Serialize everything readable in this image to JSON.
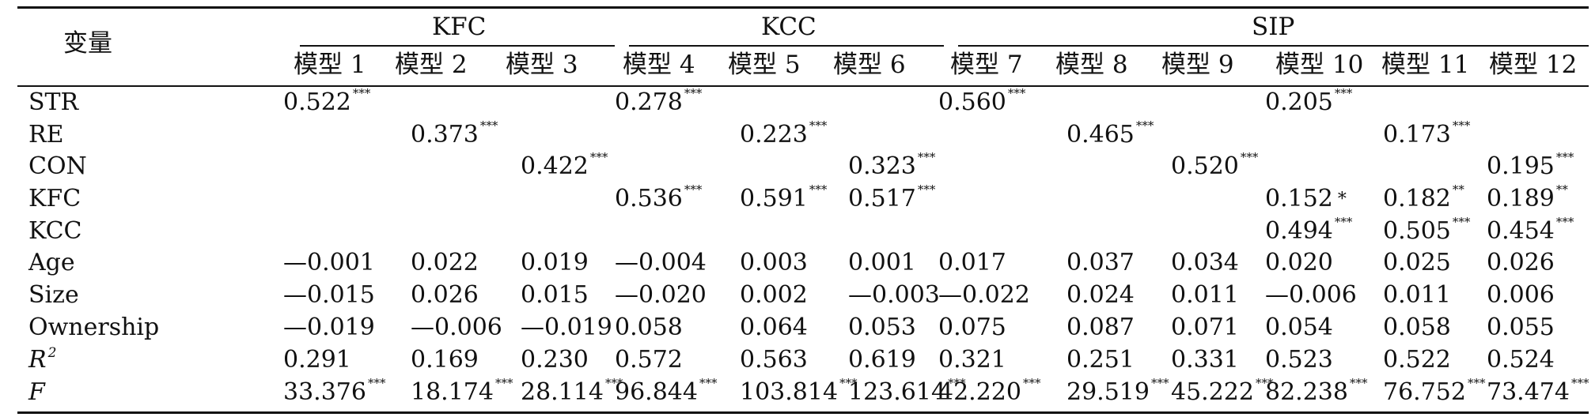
{
  "table": {
    "corner_label": "变量",
    "groups": [
      {
        "label": "KFC"
      },
      {
        "label": "KCC"
      },
      {
        "label": "SIP"
      }
    ],
    "models": [
      "模型 1",
      "模型 2",
      "模型 3",
      "模型 4",
      "模型 5",
      "模型 6",
      "模型 7",
      "模型 8",
      "模型 9",
      "模型 10",
      "模型 11",
      "模型 12"
    ],
    "rows": [
      {
        "label": "STR",
        "cells": [
          {
            "v": "0.522",
            "s": "***"
          },
          {
            "v": "",
            "s": ""
          },
          {
            "v": "",
            "s": ""
          },
          {
            "v": "0.278",
            "s": "***"
          },
          {
            "v": "",
            "s": ""
          },
          {
            "v": "",
            "s": ""
          },
          {
            "v": "0.560",
            "s": "***"
          },
          {
            "v": "",
            "s": ""
          },
          {
            "v": "",
            "s": ""
          },
          {
            "v": "0.205",
            "s": "***"
          },
          {
            "v": "",
            "s": ""
          },
          {
            "v": "",
            "s": ""
          }
        ]
      },
      {
        "label": "RE",
        "cells": [
          {
            "v": "",
            "s": ""
          },
          {
            "v": "0.373",
            "s": "***"
          },
          {
            "v": "",
            "s": ""
          },
          {
            "v": "",
            "s": ""
          },
          {
            "v": "0.223",
            "s": "***"
          },
          {
            "v": "",
            "s": ""
          },
          {
            "v": "",
            "s": ""
          },
          {
            "v": "0.465",
            "s": "***"
          },
          {
            "v": "",
            "s": ""
          },
          {
            "v": "",
            "s": ""
          },
          {
            "v": "0.173",
            "s": "***"
          },
          {
            "v": "",
            "s": ""
          }
        ]
      },
      {
        "label": "CON",
        "cells": [
          {
            "v": "",
            "s": ""
          },
          {
            "v": "",
            "s": ""
          },
          {
            "v": "0.422",
            "s": "***"
          },
          {
            "v": "",
            "s": ""
          },
          {
            "v": "",
            "s": ""
          },
          {
            "v": "0.323",
            "s": "***"
          },
          {
            "v": "",
            "s": ""
          },
          {
            "v": "",
            "s": ""
          },
          {
            "v": "0.520",
            "s": "***"
          },
          {
            "v": "",
            "s": ""
          },
          {
            "v": "",
            "s": ""
          },
          {
            "v": "0.195",
            "s": "***"
          }
        ]
      },
      {
        "label": "KFC",
        "cells": [
          {
            "v": "",
            "s": ""
          },
          {
            "v": "",
            "s": ""
          },
          {
            "v": "",
            "s": ""
          },
          {
            "v": "0.536",
            "s": "***"
          },
          {
            "v": "0.591",
            "s": "***"
          },
          {
            "v": "0.517",
            "s": "***"
          },
          {
            "v": "",
            "s": ""
          },
          {
            "v": "",
            "s": ""
          },
          {
            "v": "",
            "s": ""
          },
          {
            "v": "0.152",
            "s": "*"
          },
          {
            "v": "0.182",
            "s": "**"
          },
          {
            "v": "0.189",
            "s": "**"
          }
        ]
      },
      {
        "label": "KCC",
        "cells": [
          {
            "v": "",
            "s": ""
          },
          {
            "v": "",
            "s": ""
          },
          {
            "v": "",
            "s": ""
          },
          {
            "v": "",
            "s": ""
          },
          {
            "v": "",
            "s": ""
          },
          {
            "v": "",
            "s": ""
          },
          {
            "v": "",
            "s": ""
          },
          {
            "v": "",
            "s": ""
          },
          {
            "v": "",
            "s": ""
          },
          {
            "v": "0.494",
            "s": "***"
          },
          {
            "v": "0.505",
            "s": "***"
          },
          {
            "v": "0.454",
            "s": "***"
          }
        ]
      },
      {
        "label": "Age",
        "cells": [
          {
            "v": "—0.001",
            "s": ""
          },
          {
            "v": "0.022",
            "s": ""
          },
          {
            "v": "0.019",
            "s": ""
          },
          {
            "v": "—0.004",
            "s": ""
          },
          {
            "v": "0.003",
            "s": ""
          },
          {
            "v": "0.001",
            "s": ""
          },
          {
            "v": "0.017",
            "s": ""
          },
          {
            "v": "0.037",
            "s": ""
          },
          {
            "v": "0.034",
            "s": ""
          },
          {
            "v": "0.020",
            "s": ""
          },
          {
            "v": "0.025",
            "s": ""
          },
          {
            "v": "0.026",
            "s": ""
          }
        ]
      },
      {
        "label": "Size",
        "cells": [
          {
            "v": "—0.015",
            "s": ""
          },
          {
            "v": "0.026",
            "s": ""
          },
          {
            "v": "0.015",
            "s": ""
          },
          {
            "v": "—0.020",
            "s": ""
          },
          {
            "v": "0.002",
            "s": ""
          },
          {
            "v": "—0.003",
            "s": ""
          },
          {
            "v": "—0.022",
            "s": ""
          },
          {
            "v": "0.024",
            "s": ""
          },
          {
            "v": "0.011",
            "s": ""
          },
          {
            "v": "—0.006",
            "s": ""
          },
          {
            "v": "0.011",
            "s": ""
          },
          {
            "v": "0.006",
            "s": ""
          }
        ]
      },
      {
        "label": "Ownership",
        "cells": [
          {
            "v": "—0.019",
            "s": ""
          },
          {
            "v": "—0.006",
            "s": ""
          },
          {
            "v": "—0.019",
            "s": ""
          },
          {
            "v": "0.058",
            "s": ""
          },
          {
            "v": "0.064",
            "s": ""
          },
          {
            "v": "0.053",
            "s": ""
          },
          {
            "v": "0.075",
            "s": ""
          },
          {
            "v": "0.087",
            "s": ""
          },
          {
            "v": "0.071",
            "s": ""
          },
          {
            "v": "0.054",
            "s": ""
          },
          {
            "v": "0.058",
            "s": ""
          },
          {
            "v": "0.055",
            "s": ""
          }
        ]
      },
      {
        "label": "R",
        "label_sup": "2",
        "cells": [
          {
            "v": "0.291",
            "s": ""
          },
          {
            "v": "0.169",
            "s": ""
          },
          {
            "v": "0.230",
            "s": ""
          },
          {
            "v": "0.572",
            "s": ""
          },
          {
            "v": "0.563",
            "s": ""
          },
          {
            "v": "0.619",
            "s": ""
          },
          {
            "v": "0.321",
            "s": ""
          },
          {
            "v": "0.251",
            "s": ""
          },
          {
            "v": "0.331",
            "s": ""
          },
          {
            "v": "0.523",
            "s": ""
          },
          {
            "v": "0.522",
            "s": ""
          },
          {
            "v": "0.524",
            "s": ""
          }
        ]
      },
      {
        "label": "F",
        "cells": [
          {
            "v": "33.376",
            "s": "***"
          },
          {
            "v": "18.174",
            "s": "***"
          },
          {
            "v": "28.114",
            "s": "***"
          },
          {
            "v": "96.844",
            "s": "***"
          },
          {
            "v": "103.814",
            "s": "***"
          },
          {
            "v": "123.614",
            "s": "***"
          },
          {
            "v": "42.220",
            "s": "***"
          },
          {
            "v": "29.519",
            "s": "***"
          },
          {
            "v": "45.222",
            "s": "***"
          },
          {
            "v": "82.238",
            "s": "***"
          },
          {
            "v": "76.752",
            "s": "***"
          },
          {
            "v": "73.474",
            "s": "***"
          }
        ]
      }
    ]
  }
}
